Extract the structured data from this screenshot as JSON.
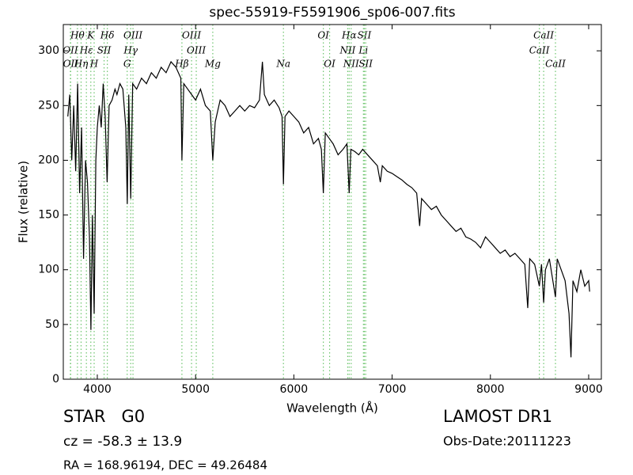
{
  "chart_data": {
    "type": "line",
    "title": "spec-55919-F5591906_sp06-007.fits",
    "x_label": "Wavelength (Å)",
    "y_label": "Flux (relative)",
    "xlim": [
      3654,
      9129
    ],
    "ylim": [
      0,
      324
    ],
    "xticks": [
      4000,
      5000,
      6000,
      7000,
      8000,
      9000
    ],
    "yticks": [
      0,
      50,
      100,
      150,
      200,
      250,
      300
    ],
    "x": [
      3700,
      3720,
      3740,
      3760,
      3780,
      3800,
      3820,
      3840,
      3860,
      3880,
      3900,
      3920,
      3935,
      3950,
      3968,
      3985,
      4000,
      4020,
      4040,
      4060,
      4080,
      4100,
      4120,
      4150,
      4180,
      4200,
      4230,
      4260,
      4290,
      4305,
      4320,
      4340,
      4360,
      4400,
      4450,
      4500,
      4550,
      4600,
      4650,
      4700,
      4750,
      4800,
      4850,
      4861,
      4880,
      4920,
      4960,
      5000,
      5050,
      5100,
      5150,
      5175,
      5200,
      5250,
      5300,
      5350,
      5400,
      5450,
      5500,
      5550,
      5600,
      5650,
      5680,
      5700,
      5750,
      5800,
      5850,
      5880,
      5894,
      5910,
      5950,
      6000,
      6050,
      6100,
      6150,
      6200,
      6250,
      6280,
      6300,
      6320,
      6360,
      6400,
      6450,
      6500,
      6540,
      6563,
      6580,
      6620,
      6660,
      6700,
      6750,
      6800,
      6850,
      6880,
      6900,
      6950,
      7000,
      7050,
      7100,
      7150,
      7200,
      7250,
      7280,
      7300,
      7350,
      7400,
      7450,
      7500,
      7550,
      7600,
      7650,
      7700,
      7750,
      7800,
      7850,
      7900,
      7950,
      8000,
      8050,
      8100,
      8150,
      8200,
      8250,
      8300,
      8350,
      8380,
      8400,
      8450,
      8498,
      8520,
      8542,
      8560,
      8600,
      8662,
      8680,
      8720,
      8760,
      8800,
      8820,
      8840,
      8880,
      8920,
      8960,
      9000,
      9010
    ],
    "series": [
      {
        "color": "#000000",
        "values": [
          240,
          260,
          200,
          250,
          190,
          270,
          170,
          230,
          110,
          200,
          180,
          130,
          45,
          150,
          60,
          200,
          230,
          250,
          230,
          270,
          240,
          180,
          250,
          255,
          265,
          260,
          270,
          265,
          230,
          160,
          260,
          165,
          270,
          265,
          275,
          270,
          280,
          275,
          285,
          280,
          290,
          285,
          275,
          200,
          270,
          265,
          260,
          255,
          265,
          250,
          245,
          200,
          235,
          255,
          250,
          240,
          245,
          250,
          245,
          250,
          248,
          255,
          290,
          260,
          250,
          255,
          248,
          240,
          178,
          240,
          245,
          240,
          235,
          225,
          230,
          215,
          220,
          210,
          170,
          225,
          220,
          215,
          205,
          210,
          215,
          170,
          210,
          208,
          205,
          210,
          205,
          200,
          195,
          180,
          195,
          190,
          188,
          185,
          182,
          178,
          175,
          170,
          140,
          165,
          160,
          155,
          158,
          150,
          145,
          140,
          135,
          138,
          130,
          128,
          125,
          120,
          130,
          125,
          120,
          115,
          118,
          112,
          115,
          110,
          105,
          65,
          110,
          105,
          85,
          105,
          70,
          100,
          110,
          75,
          110,
          100,
          90,
          60,
          20,
          90,
          80,
          100,
          85,
          90,
          80
        ]
      }
    ],
    "annotation_color": "#6cc46c",
    "line_labels": [
      [
        {
          "label": "Hθ",
          "x": 3798
        },
        {
          "label": "K",
          "x": 3934
        },
        {
          "label": "Hδ",
          "x": 4102
        },
        {
          "label": "OIII",
          "x": 4363
        },
        {
          "label": "OIII",
          "x": 4959
        },
        {
          "label": "OI",
          "x": 6300
        },
        {
          "label": "Hα",
          "x": 6563
        },
        {
          "label": "SII",
          "x": 6717
        },
        {
          "label": "CaII",
          "x": 8542
        }
      ],
      [
        {
          "label": "OII",
          "x": 3726
        },
        {
          "label": "Hε",
          "x": 3889
        },
        {
          "label": "SII",
          "x": 4069
        },
        {
          "label": "Hγ",
          "x": 4340
        },
        {
          "label": "OIII",
          "x": 5007
        },
        {
          "label": "NII",
          "x": 6548
        },
        {
          "label": "Li",
          "x": 6708
        },
        {
          "label": "CaII",
          "x": 8498
        }
      ],
      [
        {
          "label": "OII",
          "x": 3729
        },
        {
          "label": "Hη",
          "x": 3835
        },
        {
          "label": "H",
          "x": 3968
        },
        {
          "label": "G",
          "x": 4304
        },
        {
          "label": "Hβ",
          "x": 4861
        },
        {
          "label": "Mg",
          "x": 5175
        },
        {
          "label": "Na",
          "x": 5894
        },
        {
          "label": "OI",
          "x": 6364
        },
        {
          "label": "NII",
          "x": 6583
        },
        {
          "label": "SII",
          "x": 6731
        },
        {
          "label": "CaII",
          "x": 8662
        }
      ]
    ],
    "info": {
      "object": "STAR   G0",
      "cz": "cz = -58.3 ± 13.9",
      "coords": "RA = 168.96194, DEC = 49.26484",
      "survey": "LAMOST DR1",
      "obs_date": "Obs-Date:20111223"
    }
  }
}
